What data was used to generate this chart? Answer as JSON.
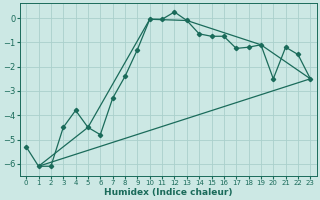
{
  "xlabel": "Humidex (Indice chaleur)",
  "bg_color": "#cce8e4",
  "grid_color": "#aad0cc",
  "line_color": "#1a6b5a",
  "xlim": [
    -0.5,
    23.5
  ],
  "ylim": [
    -6.5,
    0.6
  ],
  "yticks": [
    0,
    -1,
    -2,
    -3,
    -4,
    -5,
    -6
  ],
  "xticks": [
    0,
    1,
    2,
    3,
    4,
    5,
    6,
    7,
    8,
    9,
    10,
    11,
    12,
    13,
    14,
    15,
    16,
    17,
    18,
    19,
    20,
    21,
    22,
    23
  ],
  "curve1_x": [
    0,
    1,
    2,
    3,
    4,
    5,
    6,
    7,
    8,
    9,
    10,
    11,
    12,
    13,
    14,
    15,
    16,
    17,
    18,
    19,
    20,
    21,
    22,
    23
  ],
  "curve1_y": [
    -5.3,
    -6.1,
    -6.1,
    -4.5,
    -3.8,
    -4.5,
    -4.8,
    -3.3,
    -2.4,
    -1.3,
    -0.05,
    -0.05,
    0.25,
    -0.1,
    -0.65,
    -0.75,
    -0.75,
    -1.25,
    -1.2,
    -1.1,
    -2.5,
    -1.2,
    -1.5,
    -2.5
  ],
  "line1_x": [
    1,
    23
  ],
  "line1_y": [
    -6.1,
    -2.5
  ],
  "line3_x": [
    1,
    5,
    10,
    13,
    19,
    23
  ],
  "line3_y": [
    -6.1,
    -4.5,
    -0.05,
    -0.1,
    -1.1,
    -2.5
  ]
}
